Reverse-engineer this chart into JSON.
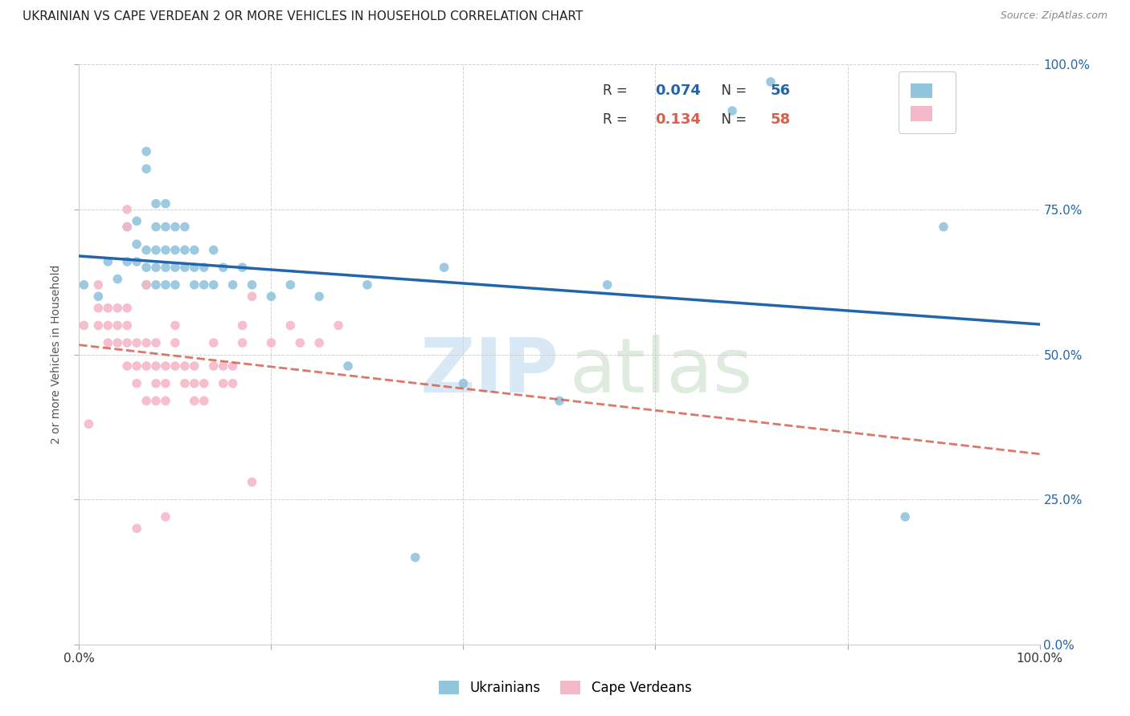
{
  "title": "UKRAINIAN VS CAPE VERDEAN 2 OR MORE VEHICLES IN HOUSEHOLD CORRELATION CHART",
  "source": "Source: ZipAtlas.com",
  "ylabel": "2 or more Vehicles in Household",
  "xlim": [
    0,
    1
  ],
  "ylim": [
    0,
    1
  ],
  "legend_r_blue": "0.074",
  "legend_n_blue": "56",
  "legend_r_pink": "0.134",
  "legend_n_pink": "58",
  "blue_color": "#92c5de",
  "pink_color": "#f4b8c8",
  "blue_line_color": "#2166ac",
  "pink_line_color": "#d6604d",
  "watermark_zip": "ZIP",
  "watermark_atlas": "atlas",
  "ukrainian_x": [
    0.005,
    0.02,
    0.03,
    0.04,
    0.05,
    0.05,
    0.06,
    0.06,
    0.06,
    0.07,
    0.07,
    0.07,
    0.07,
    0.07,
    0.08,
    0.08,
    0.08,
    0.08,
    0.08,
    0.09,
    0.09,
    0.09,
    0.09,
    0.09,
    0.1,
    0.1,
    0.1,
    0.1,
    0.11,
    0.11,
    0.11,
    0.12,
    0.12,
    0.12,
    0.13,
    0.13,
    0.14,
    0.14,
    0.15,
    0.16,
    0.17,
    0.18,
    0.2,
    0.22,
    0.25,
    0.28,
    0.3,
    0.35,
    0.38,
    0.4,
    0.5,
    0.55,
    0.68,
    0.72,
    0.86,
    0.9
  ],
  "ukrainian_y": [
    0.62,
    0.6,
    0.66,
    0.63,
    0.66,
    0.72,
    0.66,
    0.69,
    0.73,
    0.82,
    0.85,
    0.62,
    0.65,
    0.68,
    0.62,
    0.65,
    0.68,
    0.72,
    0.76,
    0.62,
    0.65,
    0.68,
    0.72,
    0.76,
    0.62,
    0.65,
    0.68,
    0.72,
    0.65,
    0.68,
    0.72,
    0.62,
    0.65,
    0.68,
    0.62,
    0.65,
    0.62,
    0.68,
    0.65,
    0.62,
    0.65,
    0.62,
    0.6,
    0.62,
    0.6,
    0.48,
    0.62,
    0.15,
    0.65,
    0.45,
    0.42,
    0.62,
    0.92,
    0.97,
    0.22,
    0.72
  ],
  "capeverdean_x": [
    0.005,
    0.01,
    0.02,
    0.02,
    0.02,
    0.03,
    0.03,
    0.03,
    0.04,
    0.04,
    0.04,
    0.05,
    0.05,
    0.05,
    0.05,
    0.06,
    0.06,
    0.06,
    0.07,
    0.07,
    0.07,
    0.08,
    0.08,
    0.08,
    0.08,
    0.09,
    0.09,
    0.09,
    0.1,
    0.1,
    0.1,
    0.11,
    0.11,
    0.12,
    0.12,
    0.12,
    0.13,
    0.13,
    0.14,
    0.14,
    0.15,
    0.15,
    0.16,
    0.16,
    0.17,
    0.17,
    0.18,
    0.2,
    0.22,
    0.23,
    0.25,
    0.27,
    0.18,
    0.09,
    0.07,
    0.06,
    0.05,
    0.05
  ],
  "capeverdean_y": [
    0.55,
    0.38,
    0.55,
    0.58,
    0.62,
    0.52,
    0.55,
    0.58,
    0.52,
    0.55,
    0.58,
    0.48,
    0.52,
    0.55,
    0.58,
    0.45,
    0.48,
    0.52,
    0.42,
    0.48,
    0.52,
    0.42,
    0.45,
    0.48,
    0.52,
    0.42,
    0.45,
    0.48,
    0.48,
    0.52,
    0.55,
    0.45,
    0.48,
    0.42,
    0.45,
    0.48,
    0.42,
    0.45,
    0.48,
    0.52,
    0.45,
    0.48,
    0.45,
    0.48,
    0.52,
    0.55,
    0.6,
    0.52,
    0.55,
    0.52,
    0.52,
    0.55,
    0.28,
    0.22,
    0.62,
    0.2,
    0.75,
    0.72
  ]
}
